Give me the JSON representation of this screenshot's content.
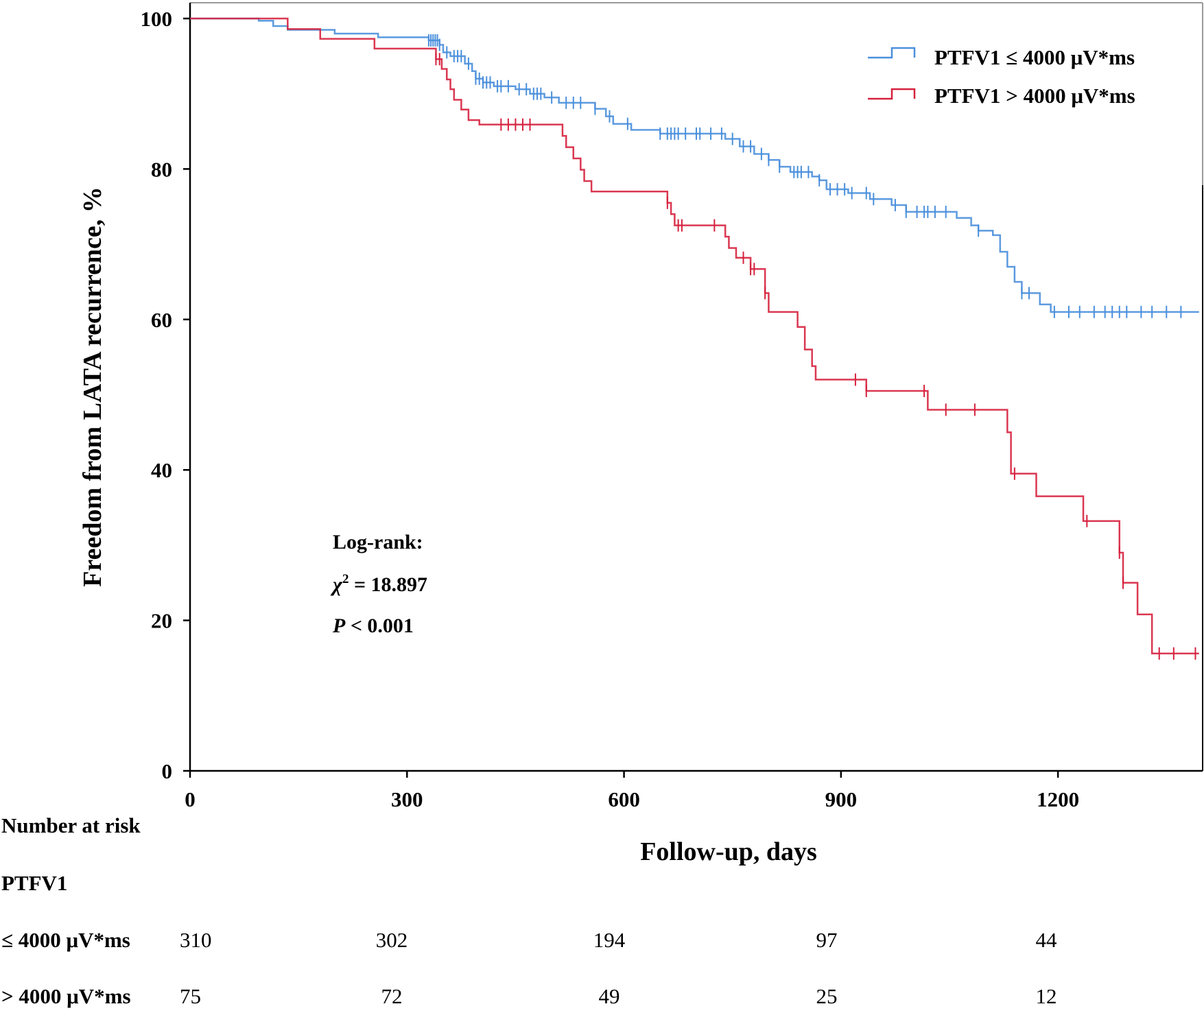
{
  "chart_data": {
    "type": "line",
    "subtype": "kaplan-meier",
    "title": "",
    "xlabel": "Follow-up, days",
    "ylabel": "Freedom from LATA recurrence, %",
    "xlim": [
      0,
      1400
    ],
    "ylim": [
      0,
      100
    ],
    "xticks": [
      0,
      300,
      600,
      900,
      1200
    ],
    "yticks": [
      0,
      20,
      40,
      60,
      80,
      100
    ],
    "legend_position": "top-right",
    "series": [
      {
        "name": "PTFV1 ≤ 4000 μV*ms",
        "color": "#4a8fdc",
        "steps": [
          [
            0,
            100
          ],
          [
            95,
            99.7
          ],
          [
            115,
            99
          ],
          [
            135,
            98.5
          ],
          [
            200,
            98
          ],
          [
            260,
            97.5
          ],
          [
            330,
            97.1
          ],
          [
            345,
            96.5
          ],
          [
            350,
            95.5
          ],
          [
            360,
            95
          ],
          [
            380,
            94
          ],
          [
            390,
            93
          ],
          [
            395,
            92
          ],
          [
            405,
            91.5
          ],
          [
            420,
            91
          ],
          [
            450,
            90.6
          ],
          [
            470,
            90
          ],
          [
            490,
            89.5
          ],
          [
            510,
            88.8
          ],
          [
            560,
            88
          ],
          [
            575,
            87
          ],
          [
            585,
            86
          ],
          [
            610,
            85.2
          ],
          [
            650,
            84.7
          ],
          [
            740,
            84
          ],
          [
            760,
            83
          ],
          [
            780,
            82
          ],
          [
            800,
            81.2
          ],
          [
            815,
            80.3
          ],
          [
            830,
            79.6
          ],
          [
            860,
            79
          ],
          [
            870,
            78.5
          ],
          [
            880,
            77.3
          ],
          [
            910,
            76.8
          ],
          [
            940,
            76
          ],
          [
            970,
            75.2
          ],
          [
            990,
            74.3
          ],
          [
            1060,
            73.5
          ],
          [
            1080,
            72.5
          ],
          [
            1090,
            71.8
          ],
          [
            1110,
            71.2
          ],
          [
            1120,
            69
          ],
          [
            1130,
            67
          ],
          [
            1140,
            65
          ],
          [
            1150,
            63.5
          ],
          [
            1175,
            62
          ],
          [
            1190,
            61
          ],
          [
            1395,
            61
          ]
        ],
        "censor_times": [
          330,
          333,
          336,
          339,
          342,
          345,
          355,
          365,
          370,
          375,
          385,
          395,
          400,
          405,
          410,
          415,
          425,
          430,
          440,
          455,
          465,
          475,
          480,
          485,
          500,
          520,
          530,
          540,
          560,
          580,
          605,
          650,
          660,
          665,
          670,
          675,
          685,
          700,
          705,
          720,
          735,
          750,
          765,
          775,
          790,
          800,
          815,
          835,
          840,
          845,
          855,
          870,
          885,
          895,
          905,
          915,
          935,
          945,
          975,
          990,
          1005,
          1015,
          1020,
          1030,
          1045,
          1090,
          1150,
          1160,
          1195,
          1215,
          1230,
          1250,
          1265,
          1275,
          1285,
          1295,
          1315,
          1330,
          1350,
          1370
        ]
      },
      {
        "name": "PTFV1 > 4000 μV*ms",
        "color": "#d6213e",
        "steps": [
          [
            0,
            100
          ],
          [
            135,
            98.6
          ],
          [
            180,
            97.3
          ],
          [
            255,
            96
          ],
          [
            340,
            94.6
          ],
          [
            348,
            93.3
          ],
          [
            355,
            91.9
          ],
          [
            360,
            90.6
          ],
          [
            365,
            89.2
          ],
          [
            375,
            87.9
          ],
          [
            385,
            86.5
          ],
          [
            400,
            85.9
          ],
          [
            515,
            84.4
          ],
          [
            520,
            82.9
          ],
          [
            530,
            81.4
          ],
          [
            540,
            79.9
          ],
          [
            545,
            78.4
          ],
          [
            555,
            77
          ],
          [
            660,
            75.5
          ],
          [
            665,
            74
          ],
          [
            670,
            72.5
          ],
          [
            740,
            71
          ],
          [
            745,
            69.5
          ],
          [
            755,
            68.2
          ],
          [
            775,
            66.7
          ],
          [
            795,
            63.5
          ],
          [
            800,
            61
          ],
          [
            840,
            59
          ],
          [
            850,
            56
          ],
          [
            860,
            53.8
          ],
          [
            865,
            52
          ],
          [
            935,
            50.5
          ],
          [
            1020,
            48
          ],
          [
            1130,
            45
          ],
          [
            1135,
            39.5
          ],
          [
            1170,
            36.5
          ],
          [
            1235,
            33.2
          ],
          [
            1285,
            29
          ],
          [
            1290,
            25
          ],
          [
            1310,
            20.8
          ],
          [
            1330,
            15.6
          ],
          [
            1395,
            15.6
          ]
        ],
        "censor_times": [
          340,
          345,
          430,
          440,
          450,
          460,
          470,
          660,
          675,
          680,
          725,
          765,
          775,
          780,
          795,
          920,
          935,
          1015,
          1045,
          1085,
          1140,
          1240,
          1285,
          1290,
          1340,
          1360,
          1390
        ]
      }
    ],
    "annotations": {
      "test": "Log-rank:",
      "chi_symbol": "χ",
      "chi_sup": "2",
      "chi_rest": " = 18.897",
      "p_symbol": "P",
      "p_rest": " < 0.001"
    },
    "risk_table": {
      "title": "Number at risk",
      "group_label": "PTFV1",
      "times": [
        0,
        300,
        600,
        900,
        1200
      ],
      "rows": [
        {
          "label": "≤ 4000 μV*ms",
          "values": [
            "310",
            "302",
            "194",
            "97",
            "44"
          ]
        },
        {
          "label": "> 4000 μV*ms",
          "values": [
            "75",
            "72",
            "49",
            "25",
            "12"
          ]
        }
      ]
    }
  }
}
